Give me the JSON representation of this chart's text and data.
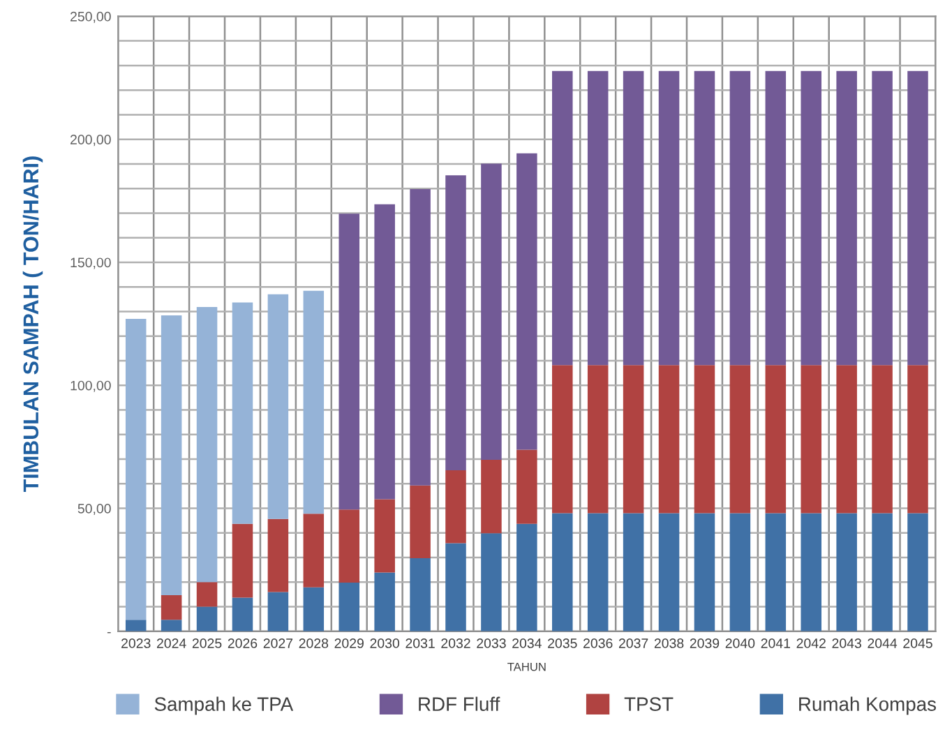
{
  "chart_data": {
    "type": "bar",
    "stacked": true,
    "xlabel": "TAHUN",
    "ylabel": "TIMBULAN SAMPAH ( TON/HARI)",
    "categories": [
      "2023",
      "2024",
      "2025",
      "2026",
      "2027",
      "2028",
      "2029",
      "2030",
      "2031",
      "2032",
      "2033",
      "2034",
      "2035",
      "2036",
      "2037",
      "2038",
      "2039",
      "2040",
      "2041",
      "2042",
      "2043",
      "2044",
      "2045"
    ],
    "series": [
      {
        "name": "Rumah Kompas",
        "color": "#4071a6",
        "values": [
          4.7,
          4.7,
          10,
          13.7,
          16,
          17.9,
          19.8,
          23.9,
          29.7,
          35.8,
          39.9,
          43.7,
          48,
          48,
          48,
          48,
          48,
          48,
          48,
          48,
          48,
          48,
          48
        ]
      },
      {
        "name": "TPST",
        "color": "#b04341",
        "values": [
          0,
          10,
          10,
          30,
          29.7,
          29.9,
          29.7,
          29.8,
          29.6,
          29.7,
          29.8,
          30.1,
          60.2,
          60.2,
          60.2,
          60.2,
          60.2,
          60.2,
          60.2,
          60.2,
          60.2,
          60.2,
          60.2
        ]
      },
      {
        "name": "Sampah ke TPA",
        "color": "#95b3d7",
        "values": [
          122.3,
          113.7,
          111.8,
          90,
          91.3,
          90.6,
          0,
          0,
          0,
          0,
          0,
          0,
          0,
          0,
          0,
          0,
          0,
          0,
          0,
          0,
          0,
          0,
          0
        ]
      },
      {
        "name": "RDF Fluff",
        "color": "#725a96",
        "values": [
          0,
          0,
          0,
          0,
          0,
          0,
          120.3,
          119.9,
          120.5,
          119.9,
          120.4,
          120.5,
          119.6,
          119.6,
          119.6,
          119.6,
          119.6,
          119.6,
          119.6,
          119.6,
          119.6,
          119.6,
          119.6
        ]
      }
    ],
    "ylim": [
      0,
      250
    ],
    "yticks": [
      {
        "value": 0,
        "label": "-"
      },
      {
        "value": 10,
        "label": null
      },
      {
        "value": 20,
        "label": null
      },
      {
        "value": 30,
        "label": null
      },
      {
        "value": 40,
        "label": null
      },
      {
        "value": 50,
        "label": "50,00"
      },
      {
        "value": 60,
        "label": null
      },
      {
        "value": 70,
        "label": null
      },
      {
        "value": 80,
        "label": null
      },
      {
        "value": 90,
        "label": null
      },
      {
        "value": 100,
        "label": "100,00"
      },
      {
        "value": 110,
        "label": null
      },
      {
        "value": 120,
        "label": null
      },
      {
        "value": 130,
        "label": null
      },
      {
        "value": 140,
        "label": null
      },
      {
        "value": 150,
        "label": "150,00"
      },
      {
        "value": 160,
        "label": null
      },
      {
        "value": 170,
        "label": null
      },
      {
        "value": 180,
        "label": null
      },
      {
        "value": 190,
        "label": null
      },
      {
        "value": 200,
        "label": "200,00"
      },
      {
        "value": 210,
        "label": null
      },
      {
        "value": 220,
        "label": null
      },
      {
        "value": 230,
        "label": null
      },
      {
        "value": 240,
        "label": null
      },
      {
        "value": 250,
        "label": "250,00"
      }
    ],
    "grid": true,
    "legend": "bottom"
  }
}
